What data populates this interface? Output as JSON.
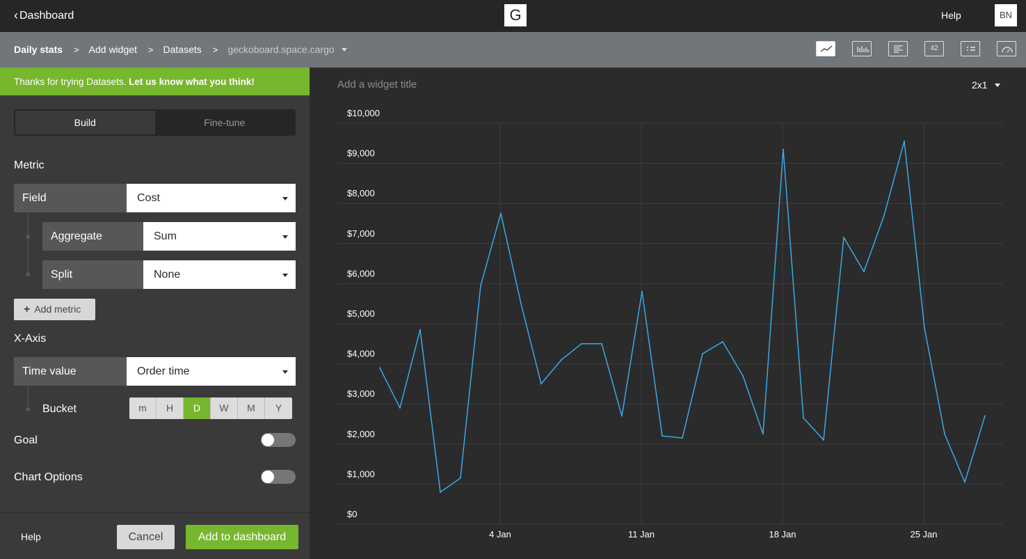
{
  "topbar": {
    "back_label": "Dashboard",
    "logo_letter": "G",
    "help_label": "Help",
    "avatar_initials": "BN"
  },
  "breadcrumb": {
    "items": [
      "Daily stats",
      "Add widget",
      "Datasets",
      "geckoboard.space.cargo"
    ],
    "separator": ">"
  },
  "vis_icons": [
    "line-chart-icon",
    "bar-chart-icon",
    "text-icon",
    "number-icon",
    "table-icon",
    "gauge-icon"
  ],
  "vis_number_label": "42",
  "banner": {
    "text": "Thanks for trying Datasets.",
    "link": "Let us know what you think!"
  },
  "mode_tabs": [
    "Build",
    "Fine-tune"
  ],
  "metric": {
    "heading": "Metric",
    "field": {
      "label": "Field",
      "value": "Cost"
    },
    "aggregate": {
      "label": "Aggregate",
      "value": "Sum"
    },
    "split": {
      "label": "Split",
      "value": "None"
    },
    "add_label": "Add metric"
  },
  "xaxis": {
    "heading": "X-Axis",
    "time": {
      "label": "Time value",
      "value": "Order time"
    },
    "bucket_label": "Bucket",
    "buckets": [
      "m",
      "H",
      "D",
      "W",
      "M",
      "Y"
    ],
    "selected_bucket": "D"
  },
  "goal_label": "Goal",
  "chart_options_label": "Chart Options",
  "footer": {
    "help": "Help",
    "cancel": "Cancel",
    "add": "Add to dashboard"
  },
  "widget": {
    "title_placeholder": "Add a widget title",
    "size": "2x1"
  },
  "colors": {
    "accent": "#77b72d",
    "line": "#3aa9e8"
  },
  "chart_data": {
    "type": "line",
    "title": "",
    "xlabel": "",
    "ylabel": "",
    "ylim": [
      0,
      10000
    ],
    "y_ticks": [
      "$0",
      "$1,000",
      "$2,000",
      "$3,000",
      "$4,000",
      "$5,000",
      "$6,000",
      "$7,000",
      "$8,000",
      "$9,000",
      "$10,000"
    ],
    "x_ticks": [
      {
        "label": "4 Jan",
        "day": 4
      },
      {
        "label": "11 Jan",
        "day": 11
      },
      {
        "label": "18 Jan",
        "day": 18
      },
      {
        "label": "25 Jan",
        "day": 25
      }
    ],
    "x": [
      "2021-01-01",
      "2021-01-02",
      "2021-01-03",
      "2021-01-04",
      "2021-01-05",
      "2021-01-06",
      "2021-01-07",
      "2021-01-08",
      "2021-01-09",
      "2021-01-10",
      "2021-01-11",
      "2021-01-12",
      "2021-01-13",
      "2021-01-14",
      "2021-01-15",
      "2021-01-16",
      "2021-01-17",
      "2021-01-18",
      "2021-01-19",
      "2021-01-20",
      "2021-01-21",
      "2021-01-22",
      "2021-01-23",
      "2021-01-24",
      "2021-01-25",
      "2021-01-26",
      "2021-01-27",
      "2021-01-28",
      "2021-01-29",
      "2021-01-30"
    ],
    "series": [
      {
        "values": [
          3900,
          2900,
          4850,
          800,
          1150,
          5950,
          7750,
          5500,
          3500,
          4100,
          4500,
          4500,
          2700,
          5800,
          2200,
          2150,
          4250,
          4550,
          3700,
          2250,
          9350,
          2650,
          2100,
          7150,
          6300,
          7700,
          9550,
          4900,
          2250,
          1050
        ]
      }
    ],
    "series_tail": 2700,
    "grid": true
  }
}
